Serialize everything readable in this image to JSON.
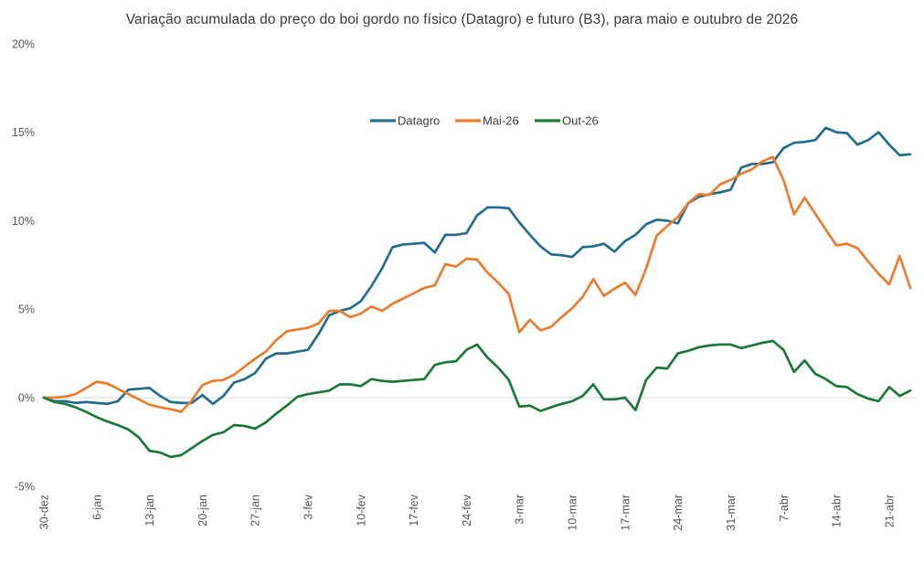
{
  "title": "Variação acumulada do preço do boi gordo no físico (Datagro) e futuro (B3), para maio e outubro de 2026",
  "colors": {
    "datagro": "#26708e",
    "mai26": "#ed7d31",
    "out26": "#1f7a3c",
    "gridline": "#d9d9d9",
    "axis_text": "#595959",
    "title_text": "#3f3f3f"
  },
  "legend": {
    "items": [
      {
        "label": "Datagro",
        "color": "#26708e"
      },
      {
        "label": "Mai-26",
        "color": "#ed7d31"
      },
      {
        "label": "Out-26",
        "color": "#1f7a3c"
      }
    ],
    "position": "top-center"
  },
  "chart_data": {
    "type": "line",
    "title": "Variação acumulada do preço do boi gordo no físico (Datagro) e futuro (B3), para maio e outubro de 2026",
    "xlabel": "",
    "ylabel": "",
    "ylim": [
      -5,
      20
    ],
    "y_tick_values": [
      20,
      15,
      10,
      5,
      0,
      -5
    ],
    "y_tick_labels": [
      "20%",
      "15%",
      "10%",
      "5%",
      "0%",
      "-5%"
    ],
    "grid": "horizontal zero-line only",
    "legend_position": "top-center",
    "x_unit": "business days (weekly tick labels, rotated 90°)",
    "x_tick_labels": [
      "30-dez",
      "6-jan",
      "13-jan",
      "20-jan",
      "27-jan",
      "3-fev",
      "10-fev",
      "17-fev",
      "24-fev",
      "3-mar",
      "10-mar",
      "17-mar",
      "24-mar",
      "31-mar",
      "7-abr",
      "14-abr",
      "21-abr"
    ],
    "tick_every": 5,
    "values_unit": "percent accumulated variation",
    "series": [
      {
        "name": "Datagro",
        "color": "#26708e",
        "values": [
          0,
          -0.2,
          -0.2,
          -0.3,
          -0.25,
          -0.3,
          -0.35,
          -0.2,
          0.45,
          0.5,
          0.55,
          0.1,
          -0.25,
          -0.3,
          -0.3,
          0.15,
          -0.35,
          0.1,
          0.85,
          1.05,
          1.4,
          2.2,
          2.5,
          2.5,
          2.6,
          2.7,
          3.6,
          4.65,
          4.9,
          5.05,
          5.45,
          6.3,
          7.3,
          8.5,
          8.65,
          8.7,
          8.75,
          8.2,
          9.2,
          9.2,
          9.3,
          10.3,
          10.75,
          10.75,
          10.7,
          9.9,
          9.2,
          8.55,
          8.1,
          8.05,
          7.95,
          8.5,
          8.55,
          8.7,
          8.25,
          8.85,
          9.2,
          9.8,
          10.05,
          10.0,
          9.85,
          11.0,
          11.35,
          11.5,
          11.6,
          11.75,
          13.0,
          13.2,
          13.2,
          13.3,
          14.1,
          14.4,
          14.45,
          14.55,
          15.25,
          15.0,
          14.95,
          14.3,
          14.55,
          15.0,
          14.3,
          13.7,
          13.75
        ]
      },
      {
        "name": "Mai-26",
        "color": "#ed7d31",
        "values": [
          0,
          0,
          0.05,
          0.2,
          0.55,
          0.9,
          0.8,
          0.5,
          0.2,
          -0.1,
          -0.4,
          -0.55,
          -0.65,
          -0.8,
          -0.15,
          0.7,
          0.95,
          1.0,
          1.3,
          1.75,
          2.2,
          2.6,
          3.25,
          3.75,
          3.85,
          3.95,
          4.2,
          4.9,
          4.9,
          4.55,
          4.75,
          5.15,
          4.9,
          5.3,
          5.6,
          5.9,
          6.2,
          6.35,
          7.55,
          7.4,
          7.85,
          7.8,
          7.05,
          6.5,
          5.85,
          3.7,
          4.4,
          3.8,
          4.0,
          4.55,
          5.05,
          5.7,
          6.7,
          5.75,
          6.15,
          6.5,
          5.8,
          7.3,
          9.15,
          9.7,
          10.2,
          11.0,
          11.5,
          11.45,
          12.05,
          12.3,
          12.65,
          12.9,
          13.35,
          13.6,
          12.3,
          10.35,
          11.3,
          10.4,
          9.5,
          8.6,
          8.7,
          8.45,
          7.7,
          7.0,
          6.4,
          8.0,
          6.2
        ]
      },
      {
        "name": "Out-26",
        "color": "#1f7a3c",
        "values": [
          0,
          -0.25,
          -0.35,
          -0.55,
          -0.8,
          -1.1,
          -1.35,
          -1.55,
          -1.8,
          -2.25,
          -3.0,
          -3.1,
          -3.35,
          -3.25,
          -2.85,
          -2.45,
          -2.1,
          -1.95,
          -1.55,
          -1.6,
          -1.75,
          -1.4,
          -0.9,
          -0.45,
          0.05,
          0.2,
          0.3,
          0.4,
          0.75,
          0.75,
          0.65,
          1.05,
          0.95,
          0.9,
          0.95,
          1.0,
          1.05,
          1.85,
          2.0,
          2.05,
          2.7,
          3.0,
          2.25,
          1.7,
          1.0,
          -0.5,
          -0.45,
          -0.75,
          -0.55,
          -0.35,
          -0.2,
          0.1,
          0.75,
          -0.1,
          -0.1,
          0.0,
          -0.7,
          1.0,
          1.7,
          1.65,
          2.5,
          2.65,
          2.85,
          2.95,
          3.0,
          3.0,
          2.8,
          2.95,
          3.1,
          3.2,
          2.7,
          1.45,
          2.1,
          1.35,
          1.05,
          0.65,
          0.6,
          0.2,
          -0.05,
          -0.2,
          0.6,
          0.1,
          0.4
        ]
      }
    ]
  }
}
